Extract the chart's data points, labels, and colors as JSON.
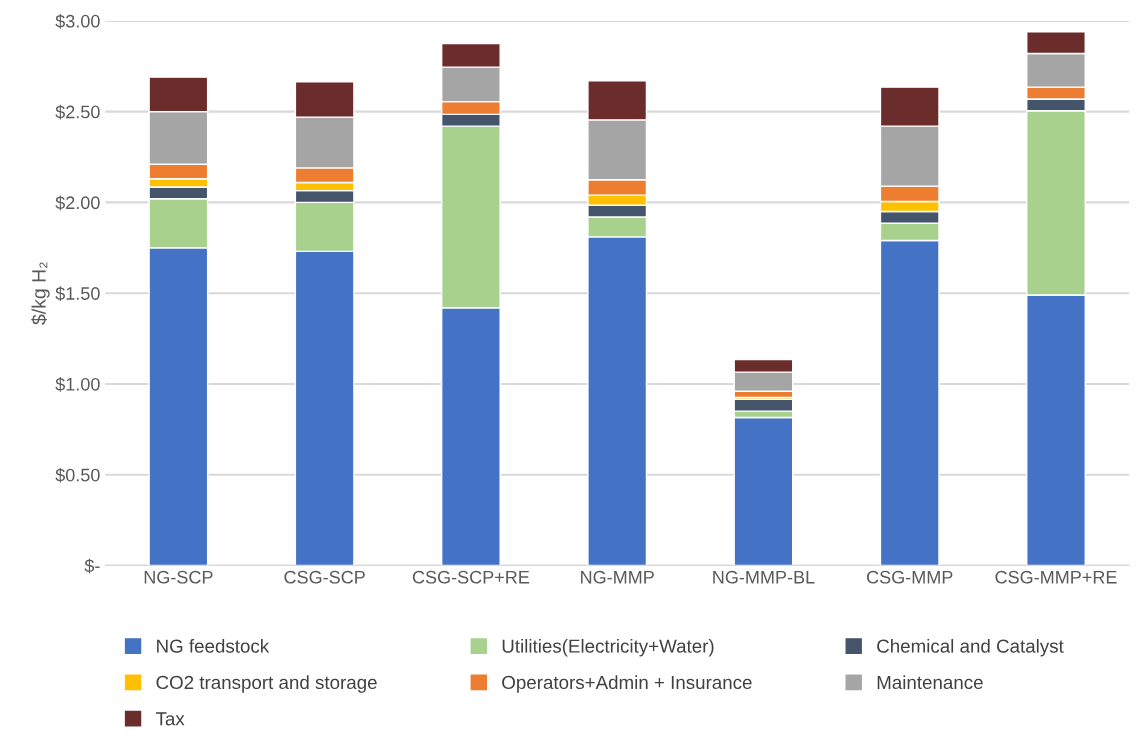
{
  "chart_data": {
    "type": "bar",
    "stacked": true,
    "ylabel": "$/kg H₂",
    "categories": [
      "NG-SCP",
      "CSG-SCP",
      "CSG-SCP+RE",
      "NG-MMP",
      "NG-MMP-BL",
      "CSG-MMP",
      "CSG-MMP+RE"
    ],
    "series": [
      {
        "name": "NG feedstock",
        "color": "#4472c4",
        "values": [
          1.75,
          1.73,
          1.42,
          1.81,
          0.815,
          1.79,
          1.49
        ]
      },
      {
        "name": "Utilities(Electricity+Water)",
        "color": "#a9d18e",
        "values": [
          0.27,
          0.27,
          1.0,
          0.11,
          0.035,
          0.095,
          1.015
        ]
      },
      {
        "name": "Chemical and Catalyst",
        "color": "#44546a",
        "values": [
          0.065,
          0.065,
          0.065,
          0.065,
          0.065,
          0.065,
          0.065
        ]
      },
      {
        "name": "CO2 transport and storage",
        "color": "#ffc000",
        "values": [
          0.045,
          0.045,
          0,
          0.055,
          0.01,
          0.055,
          0
        ]
      },
      {
        "name": "Operators+Admin + Insurance",
        "color": "#ed7d31",
        "values": [
          0.08,
          0.08,
          0.07,
          0.085,
          0.035,
          0.085,
          0.065
        ]
      },
      {
        "name": "Maintenance",
        "color": "#a5a5a5",
        "values": [
          0.29,
          0.28,
          0.19,
          0.33,
          0.105,
          0.33,
          0.185
        ]
      },
      {
        "name": "Tax",
        "color": "#6b2c2c",
        "values": [
          0.19,
          0.195,
          0.13,
          0.215,
          0.07,
          0.215,
          0.12
        ]
      }
    ],
    "ylim": [
      0,
      3
    ],
    "yticks": [
      {
        "value": 0,
        "label": "$-"
      },
      {
        "value": 0.5,
        "label": "$0.50"
      },
      {
        "value": 1,
        "label": "$1.00"
      },
      {
        "value": 1.5,
        "label": "$1.50"
      },
      {
        "value": 2,
        "label": "$2.00"
      },
      {
        "value": 2.5,
        "label": "$2.50"
      },
      {
        "value": 3,
        "label": "$3.00"
      }
    ],
    "grid": "y",
    "legend": "bottom"
  }
}
